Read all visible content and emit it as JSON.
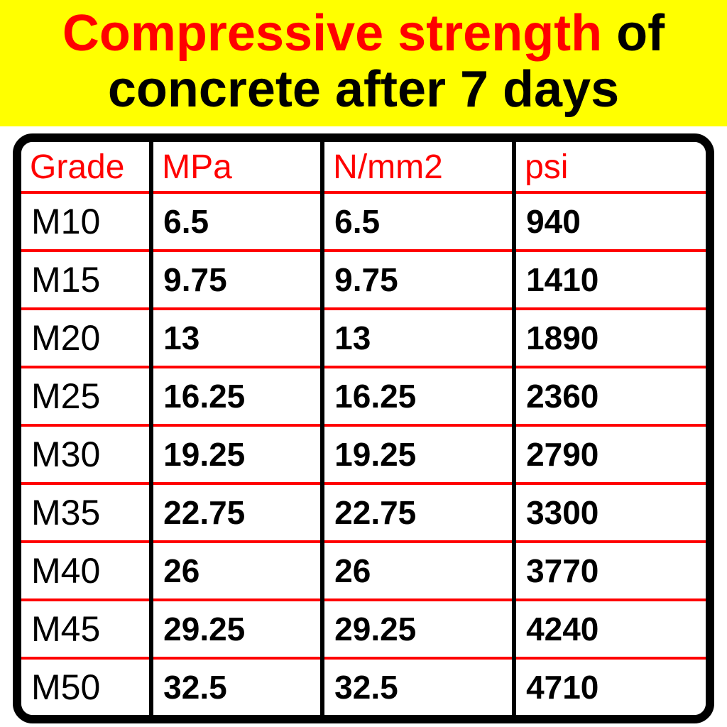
{
  "header": {
    "title_highlight": "Compressive strength",
    "title_rest": " of",
    "title_line2": "concrete after 7 days"
  },
  "table": {
    "type": "table",
    "columns": [
      "Grade",
      "MPa",
      "N/mm2",
      "psi"
    ],
    "column_widths_pct": [
      19,
      25,
      28,
      28
    ],
    "header_color": "#ff0000",
    "header_fontsize": 48,
    "cell_fontsize": 46,
    "cell_font_weight": 900,
    "grade_cell_font_weight": 400,
    "border_color_vertical": "#000000",
    "border_color_horizontal": "#ff0000",
    "outer_border_color": "#000000",
    "outer_border_width": 12,
    "outer_border_radius": 28,
    "background": "#ffffff",
    "rows": [
      {
        "grade": "M10",
        "mpa": "6.5",
        "nmm2": "6.5",
        "psi": "940"
      },
      {
        "grade": "M15",
        "mpa": "9.75",
        "nmm2": "9.75",
        "psi": "1410"
      },
      {
        "grade": "M20",
        "mpa": "13",
        "nmm2": "13",
        "psi": "1890"
      },
      {
        "grade": "M25",
        "mpa": "16.25",
        "nmm2": "16.25",
        "psi": "2360"
      },
      {
        "grade": "M30",
        "mpa": "19.25",
        "nmm2": "19.25",
        "psi": "2790"
      },
      {
        "grade": "M35",
        "mpa": "22.75",
        "nmm2": "22.75",
        "psi": "3300"
      },
      {
        "grade": "M40",
        "mpa": "26",
        "nmm2": "26",
        "psi": "3770"
      },
      {
        "grade": "M45",
        "mpa": "29.25",
        "nmm2": "29.25",
        "psi": "4240"
      },
      {
        "grade": "M50",
        "mpa": "32.5",
        "nmm2": "32.5",
        "psi": "4710"
      }
    ]
  },
  "styling": {
    "header_bg": "#ffff00",
    "title_fontsize": 72,
    "title_color": "#000000",
    "title_highlight_color": "#ff0000",
    "page_bg": "#ffffff"
  }
}
